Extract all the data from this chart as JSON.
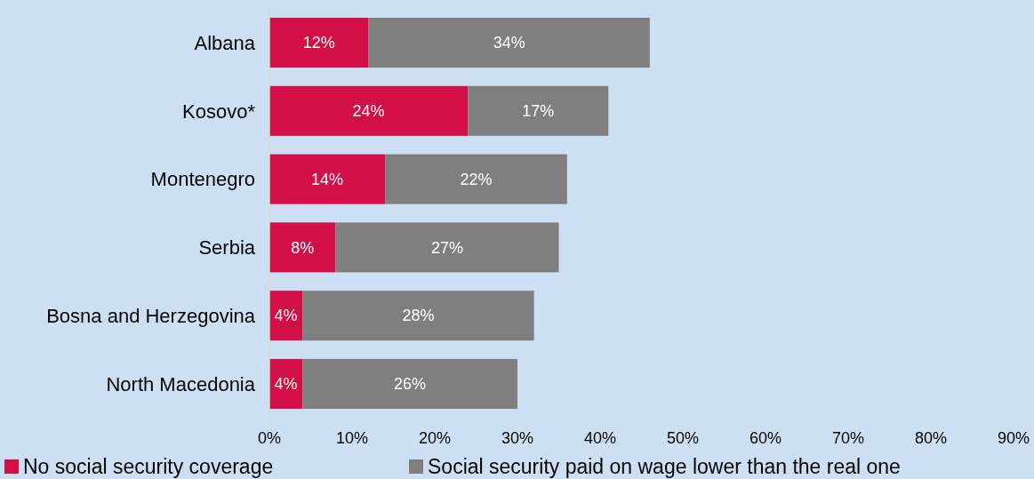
{
  "chart_data": {
    "type": "bar",
    "orientation": "horizontal",
    "stacked": true,
    "categories": [
      "Albana",
      "Kosovo*",
      "Montenegro",
      "Serbia",
      "Bosna and Herzegovina",
      "North Macedonia"
    ],
    "series": [
      {
        "name": "No social security coverage",
        "color": "#d20f46",
        "values": [
          12,
          24,
          14,
          8,
          4,
          4
        ],
        "value_labels": [
          "12%",
          "24%",
          "14%",
          "8%",
          "4%",
          "4%"
        ]
      },
      {
        "name": "Social security paid on wage lower than the real one",
        "color": "#7f7f7f",
        "values": [
          34,
          17,
          22,
          27,
          28,
          26
        ],
        "value_labels": [
          "34%",
          "17%",
          "22%",
          "27%",
          "28%",
          "26%"
        ]
      }
    ],
    "xlim": [
      0,
      90
    ],
    "xticks": [
      {
        "value": 0,
        "label": "0%"
      },
      {
        "value": 10,
        "label": "10%"
      },
      {
        "value": 20,
        "label": "20%"
      },
      {
        "value": 30,
        "label": "30%"
      },
      {
        "value": 40,
        "label": "40%"
      },
      {
        "value": 50,
        "label": "50%"
      },
      {
        "value": 60,
        "label": "60%"
      },
      {
        "value": 70,
        "label": "70%"
      },
      {
        "value": 80,
        "label": "80%"
      },
      {
        "value": 90,
        "label": "90%"
      }
    ],
    "grid": false,
    "legend": "bottom"
  }
}
